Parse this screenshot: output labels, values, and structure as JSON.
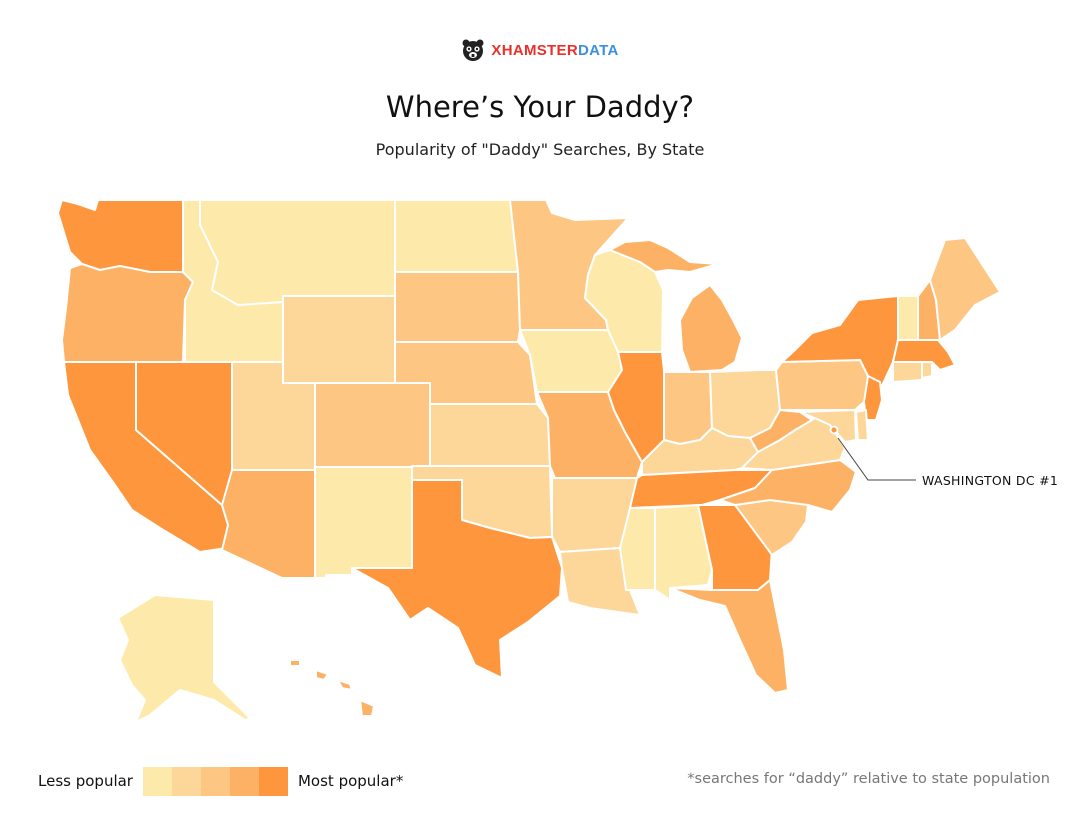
{
  "logo": {
    "brand": "XHAMSTER",
    "suffix": "DATA",
    "mascot_icon": "hamster-icon"
  },
  "title": "Where’s Your Daddy?",
  "subtitle": "Popularity of \"Daddy\" Searches, By State",
  "annotation": {
    "text": "WASHINGTON DC #1",
    "state": "DC"
  },
  "legend": {
    "low_label": "Less popular",
    "high_label": "Most popular*",
    "levels": [
      "#fde9a9",
      "#fdd69a",
      "#fdc783",
      "#fdb164",
      "#fd963c"
    ]
  },
  "footnote": "*searches for “daddy” relative to state population",
  "state_levels": {
    "WA": 5,
    "OR": 4,
    "CA": 5,
    "NV": 5,
    "ID": 1,
    "MT": 1,
    "WY": 2,
    "UT": 2,
    "AZ": 4,
    "CO": 3,
    "NM": 1,
    "ND": 1,
    "SD": 3,
    "NE": 3,
    "KS": 2,
    "OK": 2,
    "TX": 5,
    "MN": 3,
    "IA": 1,
    "MO": 4,
    "AR": 2,
    "LA": 2,
    "WI": 1,
    "IL": 5,
    "MI": 4,
    "IN": 3,
    "OH": 2,
    "KY": 2,
    "TN": 5,
    "MS": 1,
    "AL": 1,
    "GA": 5,
    "FL": 4,
    "SC": 3,
    "NC": 4,
    "VA": 2,
    "WV": 4,
    "PA": 3,
    "NY": 5,
    "NJ": 5,
    "DE": 2,
    "MD": 2,
    "CT": 2,
    "RI": 2,
    "MA": 5,
    "VT": 1,
    "NH": 4,
    "ME": 3,
    "AK": 1,
    "HI": 4,
    "DC": 5
  }
}
